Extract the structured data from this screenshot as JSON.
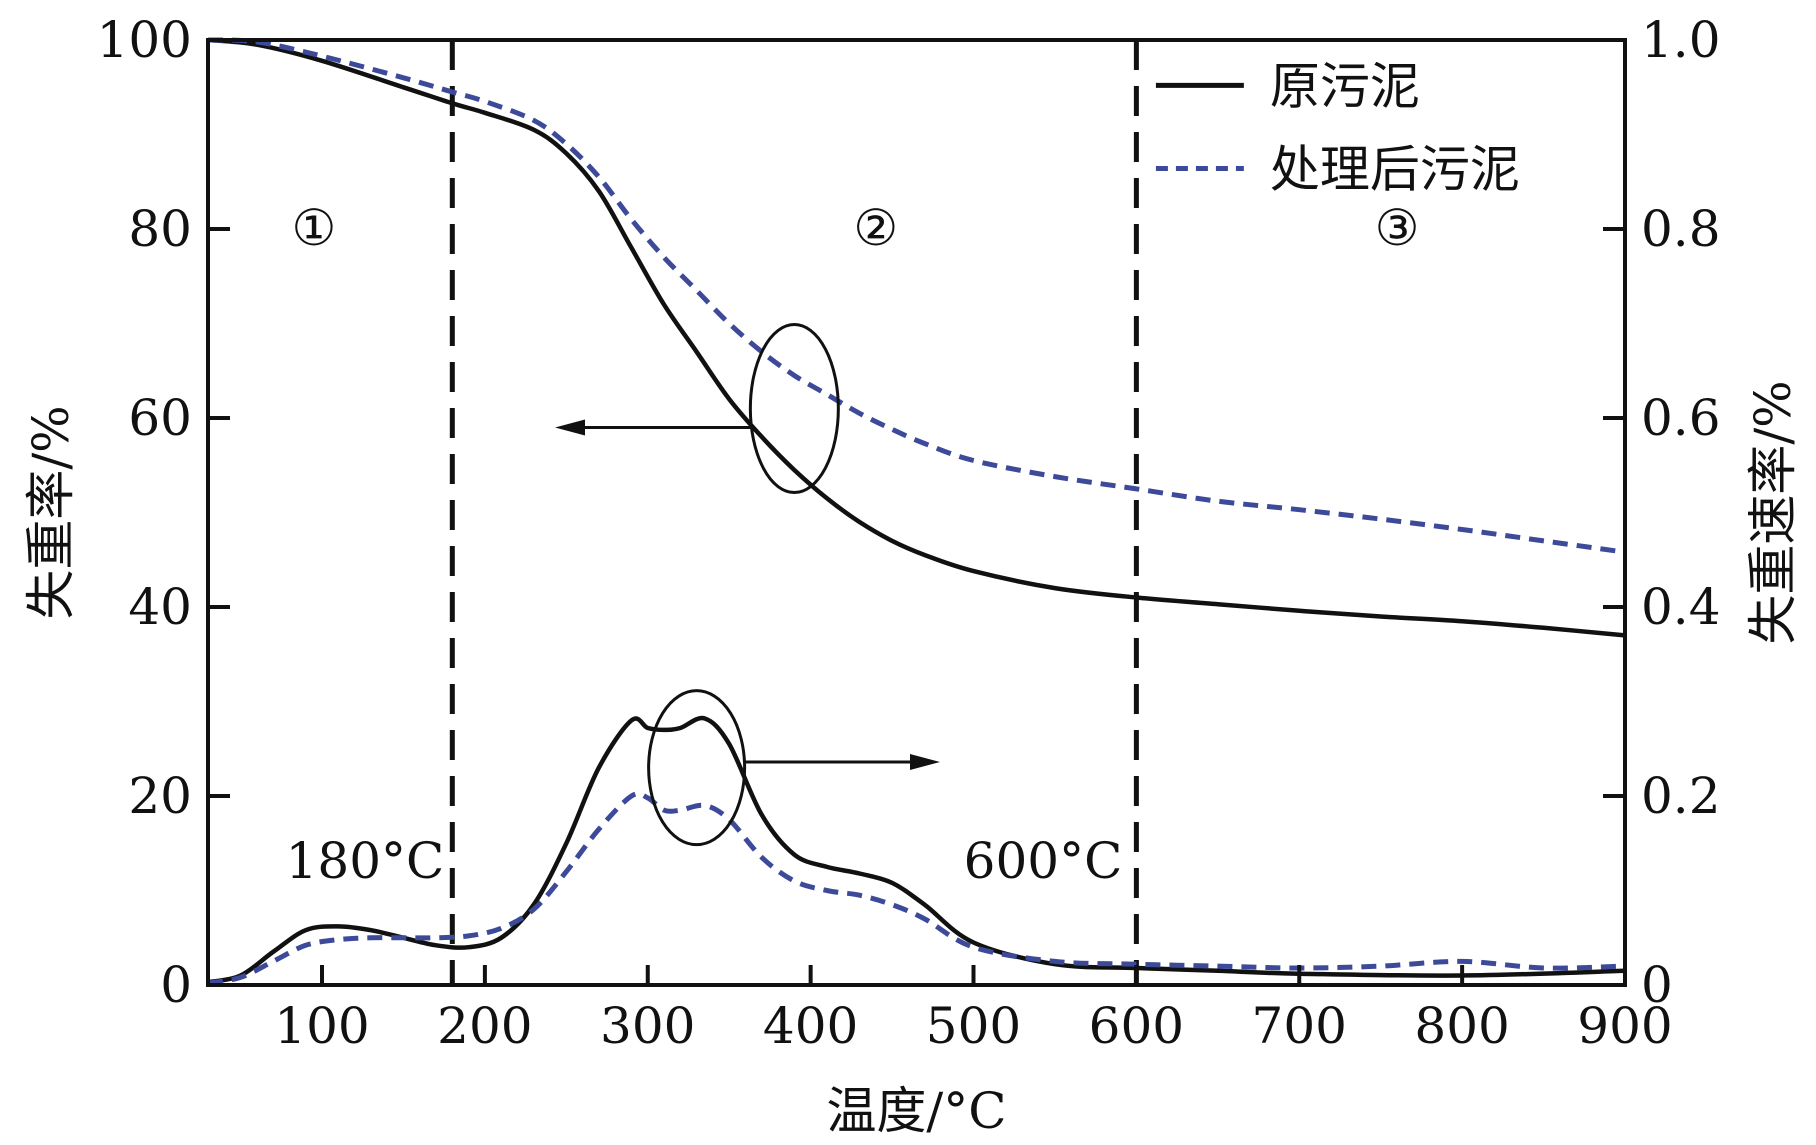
{
  "chart_data": {
    "type": "line",
    "xlabel": "温度/°C",
    "ylabel_left": "失重率/%",
    "ylabel_right": "失重速率/%",
    "xlim": [
      30,
      900
    ],
    "ylim_left": [
      0,
      100
    ],
    "ylim_right": [
      0,
      1.0
    ],
    "x_ticks": [
      100,
      200,
      300,
      400,
      500,
      600,
      700,
      800,
      900
    ],
    "y_left_ticks": [
      0,
      20,
      40,
      60,
      80,
      100
    ],
    "y_right_ticks": [
      0,
      0.2,
      0.4,
      0.6,
      0.8,
      1.0
    ],
    "y_right_tick_labels": [
      "0",
      "0.2",
      "0.4",
      "0.6",
      "0.8",
      "1.0"
    ],
    "legend": {
      "position": "top-right",
      "entries": [
        "原污泥",
        "处理后污泥"
      ]
    },
    "colors": {
      "raw": "#111111",
      "treated": "#3d4a9a",
      "axis": "#111111"
    },
    "vlines": [
      {
        "x": 180,
        "label": "180°C"
      },
      {
        "x": 600,
        "label": "600°C"
      }
    ],
    "regions": [
      "①",
      "②",
      "③"
    ],
    "series": [
      {
        "name": "原污泥",
        "kind": "TG",
        "axis": "left",
        "style": "solid",
        "x": [
          30,
          60,
          100,
          150,
          180,
          200,
          230,
          250,
          270,
          290,
          310,
          330,
          350,
          370,
          390,
          410,
          430,
          450,
          470,
          500,
          550,
          600,
          650,
          700,
          750,
          800,
          850,
          900
        ],
        "y": [
          100,
          99.5,
          97.8,
          95,
          93.3,
          92.3,
          90.5,
          88,
          84,
          78,
          72,
          67,
          62,
          58,
          54.5,
          51.5,
          49,
          47,
          45.5,
          43.8,
          42,
          41,
          40.3,
          39.6,
          39,
          38.5,
          37.8,
          37
        ]
      },
      {
        "name": "处理后污泥",
        "kind": "TG",
        "axis": "left",
        "style": "dashed",
        "x": [
          30,
          60,
          100,
          150,
          180,
          200,
          230,
          250,
          270,
          290,
          310,
          330,
          350,
          370,
          390,
          410,
          430,
          450,
          470,
          500,
          550,
          600,
          650,
          700,
          750,
          800,
          850,
          900
        ],
        "y": [
          100,
          99.8,
          98.3,
          96,
          94.5,
          93.5,
          91.5,
          89,
          85.5,
          81,
          77,
          73.5,
          70,
          67,
          64.5,
          62.5,
          60.5,
          58.8,
          57.3,
          55.5,
          53.8,
          52.5,
          51.2,
          50.3,
          49.3,
          48.2,
          47,
          45.8
        ]
      },
      {
        "name": "原污泥",
        "kind": "DTG",
        "axis": "right",
        "style": "solid",
        "x": [
          30,
          50,
          70,
          90,
          110,
          130,
          150,
          170,
          190,
          210,
          230,
          250,
          270,
          290,
          300,
          310,
          320,
          335,
          350,
          370,
          390,
          410,
          430,
          450,
          470,
          500,
          550,
          600,
          650,
          700,
          800,
          900
        ],
        "y": [
          0.003,
          0.01,
          0.035,
          0.058,
          0.062,
          0.058,
          0.05,
          0.042,
          0.04,
          0.05,
          0.085,
          0.15,
          0.23,
          0.28,
          0.272,
          0.27,
          0.272,
          0.282,
          0.255,
          0.18,
          0.138,
          0.125,
          0.118,
          0.108,
          0.085,
          0.045,
          0.022,
          0.018,
          0.015,
          0.012,
          0.01,
          0.015
        ]
      },
      {
        "name": "处理后污泥",
        "kind": "DTG",
        "axis": "right",
        "style": "dashed",
        "x": [
          30,
          50,
          70,
          90,
          110,
          130,
          150,
          170,
          190,
          210,
          230,
          250,
          270,
          290,
          300,
          310,
          320,
          335,
          350,
          370,
          390,
          410,
          430,
          450,
          470,
          500,
          550,
          600,
          650,
          700,
          750,
          800,
          850,
          900
        ],
        "y": [
          0.002,
          0.008,
          0.025,
          0.042,
          0.048,
          0.05,
          0.05,
          0.05,
          0.052,
          0.06,
          0.08,
          0.12,
          0.165,
          0.2,
          0.198,
          0.185,
          0.185,
          0.19,
          0.175,
          0.135,
          0.11,
          0.1,
          0.095,
          0.085,
          0.07,
          0.04,
          0.025,
          0.022,
          0.02,
          0.018,
          0.02,
          0.025,
          0.018,
          0.02
        ]
      }
    ]
  }
}
